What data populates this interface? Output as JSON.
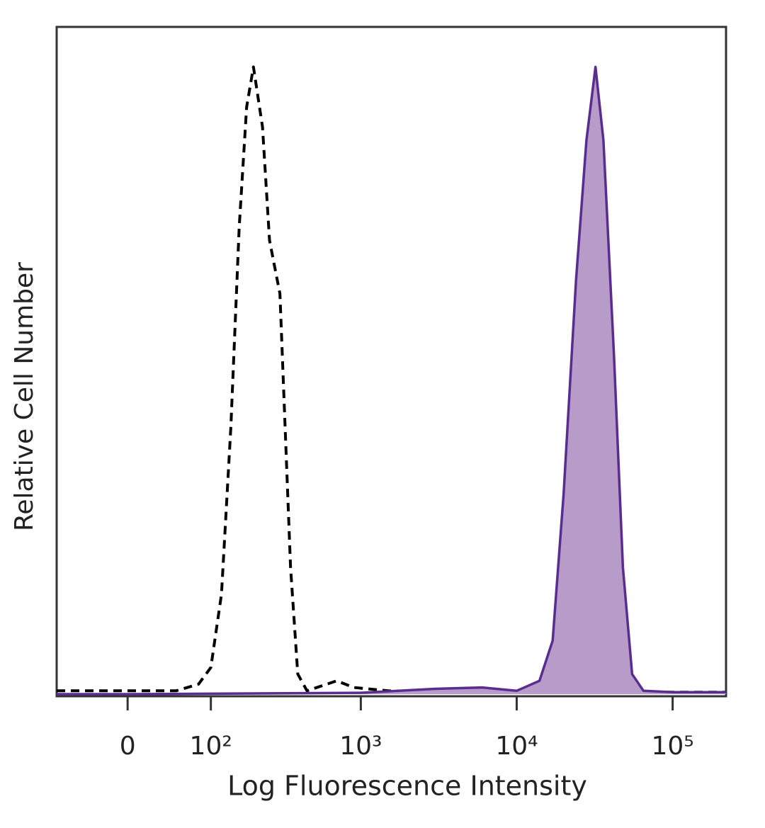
{
  "chart_data": {
    "type": "histogram_overlay",
    "xlabel": "Log Fluorescence Intensity",
    "ylabel": "Relative Cell Number",
    "xscale": "biexponential",
    "xlim": [
      -80,
      220000
    ],
    "xticks": [
      0,
      {
        "value": 100,
        "label": "10²"
      },
      {
        "value": 1000,
        "label": "10³"
      },
      {
        "value": 10000,
        "label": "10⁴"
      },
      {
        "value": 100000,
        "label": "10⁵"
      }
    ],
    "ylim": [
      0,
      100
    ],
    "series": [
      {
        "color": "#000000",
        "dashed": true,
        "filled": false,
        "x": [
          -80,
          -40,
          0,
          50,
          80,
          100,
          120,
          140,
          160,
          180,
          200,
          230,
          256,
          300,
          352,
          392,
          450,
          700,
          900,
          1500,
          5000,
          20000,
          100000,
          220000
        ],
        "values": [
          0.5,
          0.5,
          0.5,
          0.5,
          1.5,
          4,
          15,
          40,
          70,
          88,
          94,
          85,
          68,
          60,
          19,
          3,
          0.5,
          2,
          1,
          0.5,
          0.3,
          0.3,
          0.3,
          0.3
        ]
      },
      {
        "color": "#5b2c8f",
        "fill": "#b79bc8",
        "dashed": false,
        "filled": true,
        "x": [
          -80,
          0,
          1000,
          3000,
          6000,
          10000,
          14000,
          17000,
          20000,
          24000,
          28000,
          32000,
          36000,
          42000,
          48000,
          55000,
          65000,
          100000,
          220000
        ],
        "values": [
          0,
          0,
          0.2,
          0.8,
          1,
          0.5,
          2,
          8,
          30,
          62,
          83,
          94,
          83,
          51,
          19,
          3,
          0.5,
          0.3,
          0.3
        ]
      }
    ]
  }
}
